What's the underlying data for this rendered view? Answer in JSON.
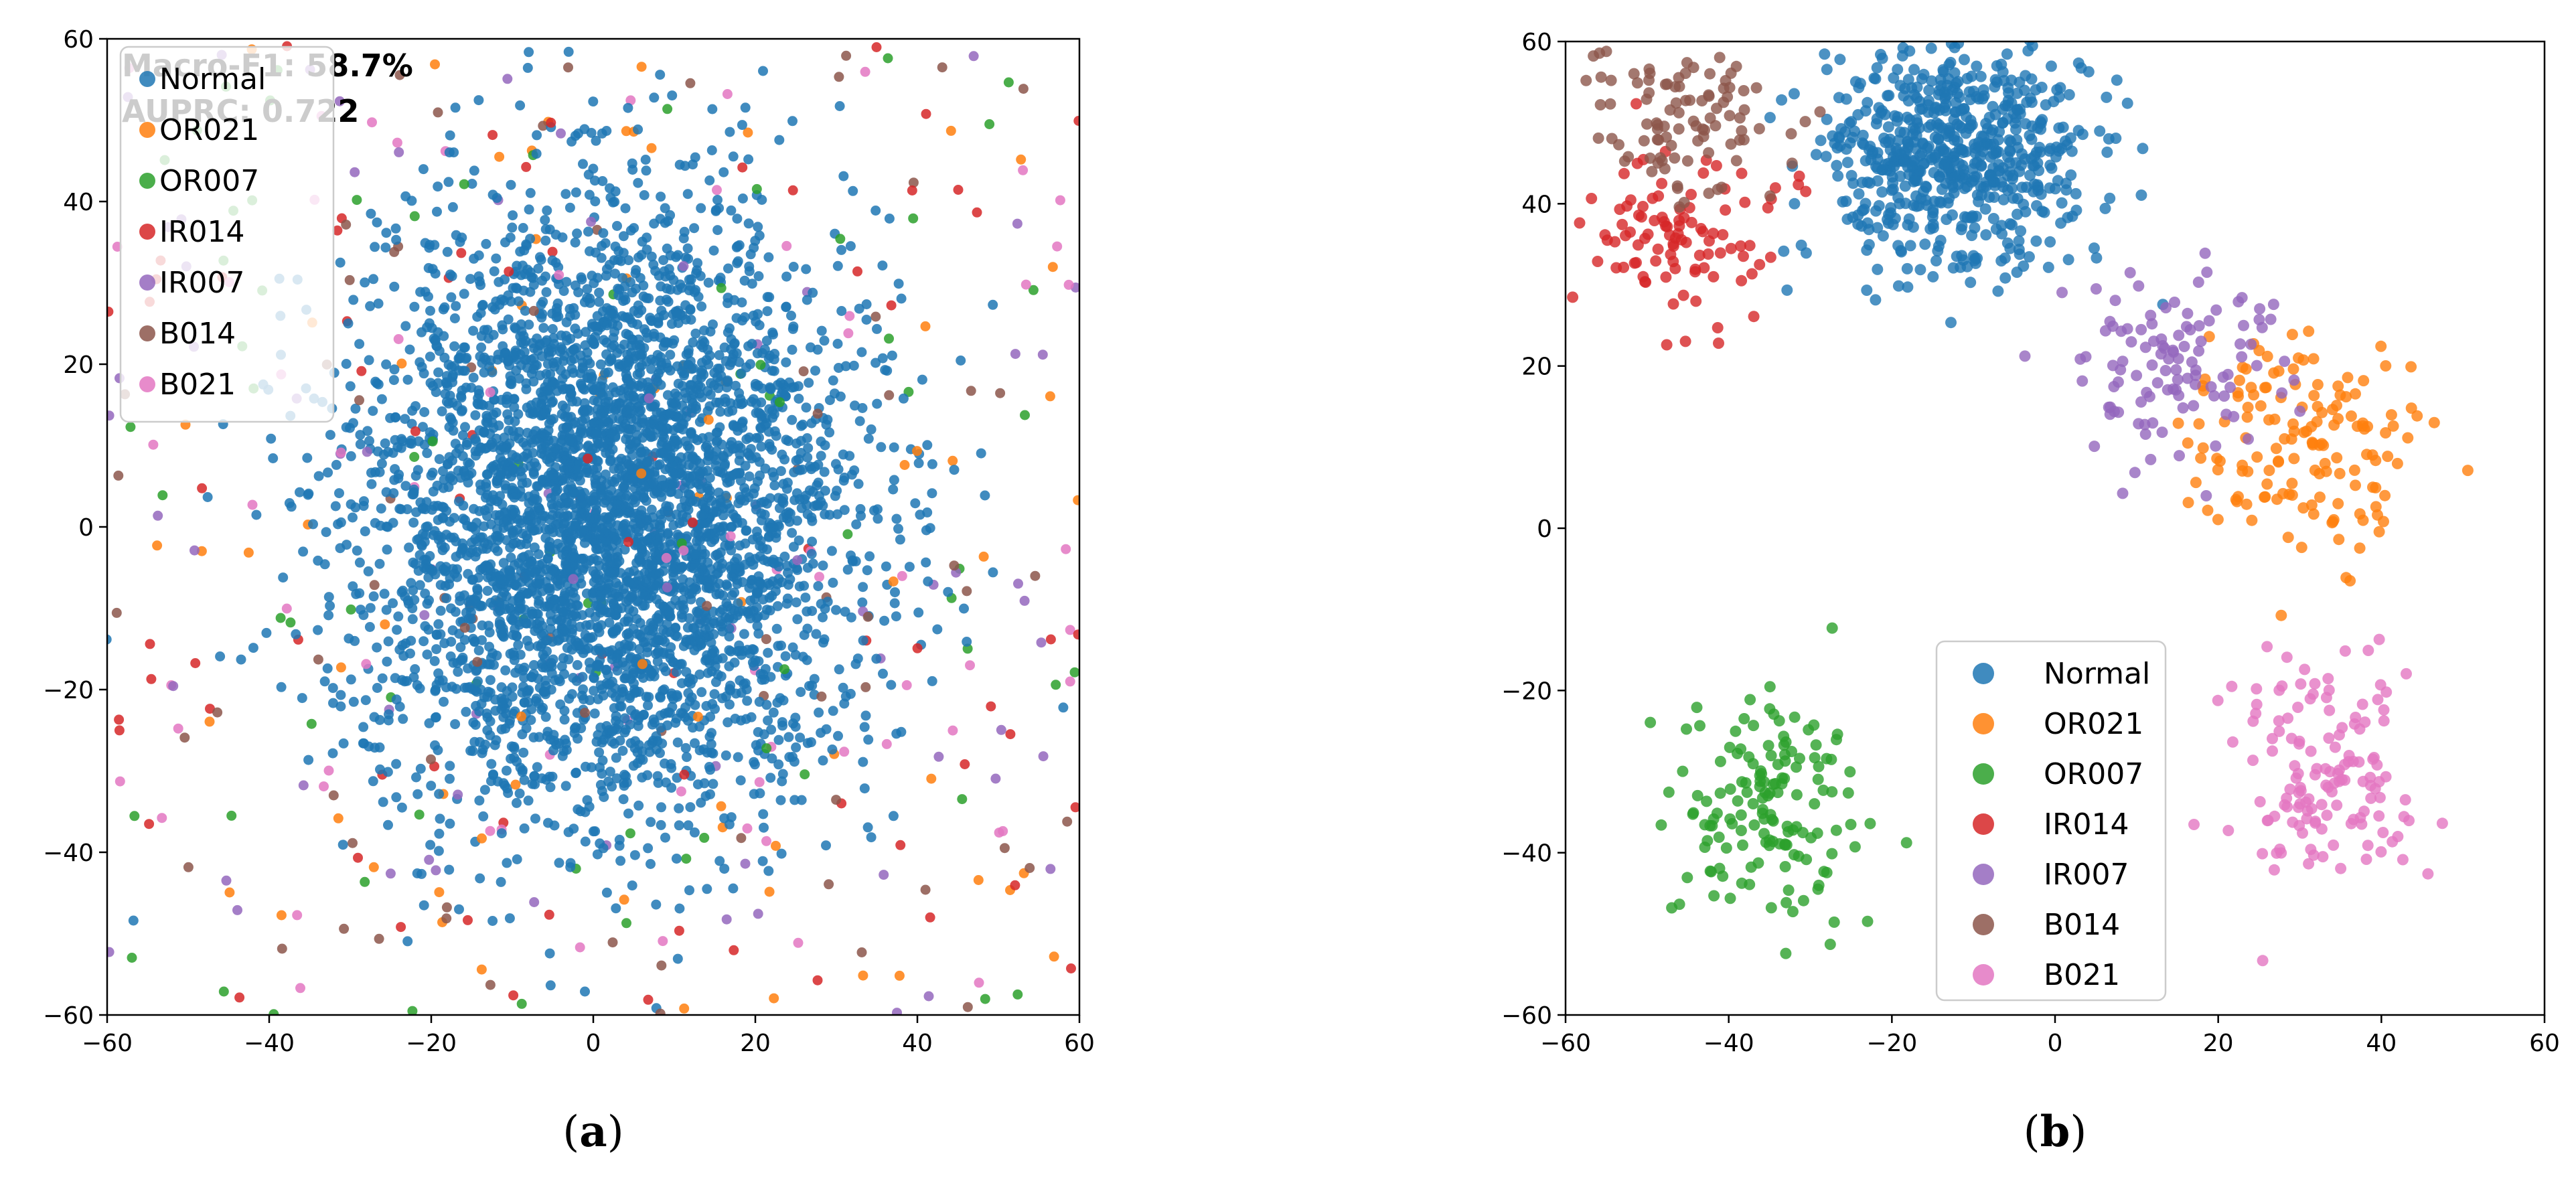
{
  "chart_data": [
    {
      "type": "scatter",
      "panel_label": "a",
      "xlim": [
        -60,
        60
      ],
      "ylim": [
        -60,
        60
      ],
      "xticks": [
        -60,
        -40,
        -20,
        0,
        20,
        40,
        60
      ],
      "yticks": [
        -60,
        -40,
        -20,
        0,
        20,
        40,
        60
      ],
      "grid": false,
      "legend_position": "top-left",
      "annotation": {
        "line1": "Macro-F1: 58.7%",
        "line2": "AUPRC: 0.722"
      },
      "series": [
        {
          "name": "Normal",
          "color": "#1f77b4",
          "distribution": "gaussian",
          "center": [
            2,
            2
          ],
          "spread": [
            15,
            18
          ],
          "points": 4200
        },
        {
          "name": "OR021",
          "color": "#ff7f0e",
          "distribution": "uniform",
          "points": 75
        },
        {
          "name": "OR007",
          "color": "#2ca02c",
          "distribution": "uniform",
          "points": 75
        },
        {
          "name": "IR014",
          "color": "#d62728",
          "distribution": "uniform",
          "points": 75
        },
        {
          "name": "IR007",
          "color": "#9467bd",
          "distribution": "uniform",
          "points": 75
        },
        {
          "name": "B014",
          "color": "#8c564b",
          "distribution": "uniform",
          "points": 75
        },
        {
          "name": "B021",
          "color": "#e377c2",
          "distribution": "uniform",
          "points": 75
        }
      ]
    },
    {
      "type": "scatter",
      "panel_label": "b",
      "xlim": [
        -60,
        60
      ],
      "ylim": [
        -60,
        60
      ],
      "xticks": [
        -60,
        -40,
        -20,
        0,
        20,
        40,
        60
      ],
      "yticks": [
        -60,
        -40,
        -20,
        0,
        20,
        40,
        60
      ],
      "grid": false,
      "legend_position": "lower-center",
      "series": [
        {
          "name": "Normal",
          "color": "#1f77b4",
          "distribution": "gaussian",
          "center": [
            -12,
            46
          ],
          "spread": [
            8,
            7
          ],
          "points": 650
        },
        {
          "name": "OR021",
          "color": "#ff7f0e",
          "distribution": "gaussian",
          "center": [
            30,
            10
          ],
          "spread": [
            7,
            7
          ],
          "points": 150
        },
        {
          "name": "OR007",
          "color": "#2ca02c",
          "distribution": "gaussian",
          "center": [
            -35,
            -34
          ],
          "spread": [
            6,
            7
          ],
          "points": 150
        },
        {
          "name": "IR014",
          "color": "#d62728",
          "distribution": "gaussian",
          "center": [
            -46,
            36
          ],
          "spread": [
            6,
            6
          ],
          "points": 100
        },
        {
          "name": "IR007",
          "color": "#9467bd",
          "distribution": "gaussian",
          "center": [
            14,
            20
          ],
          "spread": [
            7,
            6
          ],
          "points": 110
        },
        {
          "name": "B014",
          "color": "#8c564b",
          "distribution": "gaussian",
          "center": [
            -46,
            50
          ],
          "spread": [
            6,
            5
          ],
          "points": 100
        },
        {
          "name": "B021",
          "color": "#e377c2",
          "distribution": "gaussian",
          "center": [
            33,
            -31
          ],
          "spread": [
            6,
            7
          ],
          "points": 140
        }
      ]
    }
  ]
}
